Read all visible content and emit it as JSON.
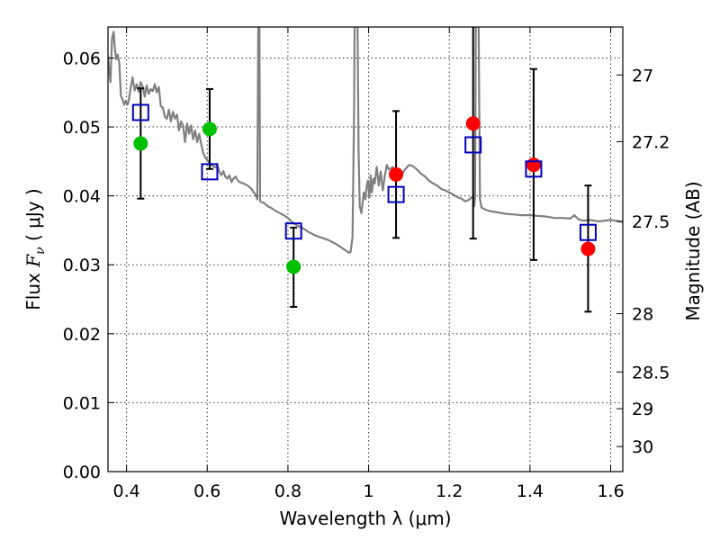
{
  "chart_data": {
    "type": "scatter",
    "title": "",
    "xlabel": "Wavelength  λ (μm)",
    "ylabel_prefix": "Flux  ",
    "ylabel_symbol": "F",
    "ylabel_sub": "ν",
    "ylabel_suffix": "  ( μJy )",
    "ylabel_right": "Magnitude (AB)",
    "xlim": [
      0.354,
      1.63
    ],
    "ylim": [
      0.0,
      0.0645
    ],
    "grid": true,
    "x_ticks": [
      {
        "value": 0.4,
        "label": "0.4"
      },
      {
        "value": 0.6,
        "label": "0.6"
      },
      {
        "value": 0.8,
        "label": "0.8"
      },
      {
        "value": 1.0,
        "label": "1"
      },
      {
        "value": 1.2,
        "label": "1.2"
      },
      {
        "value": 1.4,
        "label": "1.4"
      },
      {
        "value": 1.6,
        "label": "1.6"
      }
    ],
    "y_ticks": [
      {
        "value": 0.0,
        "label": "0.00"
      },
      {
        "value": 0.01,
        "label": "0.01"
      },
      {
        "value": 0.02,
        "label": "0.02"
      },
      {
        "value": 0.03,
        "label": "0.03"
      },
      {
        "value": 0.04,
        "label": "0.04"
      },
      {
        "value": 0.05,
        "label": "0.05"
      },
      {
        "value": 0.06,
        "label": "0.06"
      }
    ],
    "right_ticks": [
      {
        "value": 27,
        "label": "27"
      },
      {
        "value": 27.2,
        "label": "27.2"
      },
      {
        "value": 27.5,
        "label": "27.5"
      },
      {
        "value": 28,
        "label": "28"
      },
      {
        "value": 28.5,
        "label": "28.5"
      },
      {
        "value": 29,
        "label": "29"
      },
      {
        "value": 30,
        "label": "30"
      }
    ],
    "model_spectrum": {
      "color": "#808080",
      "points": [
        [
          0.354,
          0.0604
        ],
        [
          0.357,
          0.0582
        ],
        [
          0.36,
          0.0565
        ],
        [
          0.364,
          0.0628
        ],
        [
          0.368,
          0.0638
        ],
        [
          0.371,
          0.0615
        ],
        [
          0.374,
          0.0598
        ],
        [
          0.378,
          0.0605
        ],
        [
          0.382,
          0.0592
        ],
        [
          0.386,
          0.0545
        ],
        [
          0.39,
          0.054
        ],
        [
          0.394,
          0.0532
        ],
        [
          0.398,
          0.0538
        ],
        [
          0.402,
          0.0532
        ],
        [
          0.405,
          0.0537
        ],
        [
          0.41,
          0.0556
        ],
        [
          0.415,
          0.0572
        ],
        [
          0.42,
          0.0553
        ],
        [
          0.425,
          0.0562
        ],
        [
          0.43,
          0.0551
        ],
        [
          0.435,
          0.0565
        ],
        [
          0.44,
          0.0558
        ],
        [
          0.445,
          0.0544
        ],
        [
          0.45,
          0.056
        ],
        [
          0.455,
          0.0548
        ],
        [
          0.46,
          0.0555
        ],
        [
          0.465,
          0.0552
        ],
        [
          0.47,
          0.0562
        ],
        [
          0.475,
          0.055
        ],
        [
          0.48,
          0.0558
        ],
        [
          0.485,
          0.053
        ],
        [
          0.49,
          0.0528
        ],
        [
          0.495,
          0.0515
        ],
        [
          0.5,
          0.0512
        ],
        [
          0.505,
          0.0525
        ],
        [
          0.51,
          0.0508
        ],
        [
          0.515,
          0.0522
        ],
        [
          0.52,
          0.0512
        ],
        [
          0.525,
          0.0518
        ],
        [
          0.53,
          0.0495
        ],
        [
          0.535,
          0.0508
        ],
        [
          0.54,
          0.0502
        ],
        [
          0.545,
          0.0478
        ],
        [
          0.55,
          0.0505
        ],
        [
          0.555,
          0.049
        ],
        [
          0.56,
          0.0502
        ],
        [
          0.565,
          0.0482
        ],
        [
          0.57,
          0.0495
        ],
        [
          0.575,
          0.0478
        ],
        [
          0.58,
          0.049
        ],
        [
          0.585,
          0.0475
        ],
        [
          0.59,
          0.0462
        ],
        [
          0.595,
          0.0456
        ],
        [
          0.6,
          0.0452
        ],
        [
          0.605,
          0.0448
        ],
        [
          0.61,
          0.0445
        ],
        [
          0.62,
          0.0441
        ],
        [
          0.625,
          0.0444
        ],
        [
          0.63,
          0.0435
        ],
        [
          0.635,
          0.043
        ],
        [
          0.64,
          0.0436
        ],
        [
          0.645,
          0.0428
        ],
        [
          0.65,
          0.0425
        ],
        [
          0.655,
          0.043
        ],
        [
          0.66,
          0.042
        ],
        [
          0.665,
          0.0425
        ],
        [
          0.67,
          0.0428
        ],
        [
          0.675,
          0.0423
        ],
        [
          0.68,
          0.042
        ],
        [
          0.69,
          0.0418
        ],
        [
          0.7,
          0.0415
        ],
        [
          0.71,
          0.041
        ],
        [
          0.715,
          0.0405
        ],
        [
          0.72,
          0.0402
        ],
        [
          0.724,
          0.0395
        ],
        [
          0.727,
          0.07
        ],
        [
          0.729,
          0.07
        ],
        [
          0.731,
          0.0392
        ],
        [
          0.74,
          0.039
        ],
        [
          0.75,
          0.0385
        ],
        [
          0.76,
          0.0382
        ],
        [
          0.77,
          0.0378
        ],
        [
          0.78,
          0.0375
        ],
        [
          0.79,
          0.0372
        ],
        [
          0.8,
          0.0368
        ],
        [
          0.81,
          0.0362
        ],
        [
          0.82,
          0.0358
        ],
        [
          0.83,
          0.0355
        ],
        [
          0.84,
          0.0352
        ],
        [
          0.85,
          0.0348
        ],
        [
          0.86,
          0.0345
        ],
        [
          0.87,
          0.0342
        ],
        [
          0.88,
          0.034
        ],
        [
          0.89,
          0.0338
        ],
        [
          0.9,
          0.0336
        ],
        [
          0.91,
          0.0333
        ],
        [
          0.92,
          0.033
        ],
        [
          0.93,
          0.0326
        ],
        [
          0.94,
          0.0322
        ],
        [
          0.95,
          0.0318
        ],
        [
          0.955,
          0.0318
        ],
        [
          0.96,
          0.034
        ],
        [
          0.964,
          0.052
        ],
        [
          0.966,
          0.07
        ],
        [
          0.972,
          0.07
        ],
        [
          0.975,
          0.0468
        ],
        [
          0.978,
          0.0385
        ],
        [
          0.982,
          0.0375
        ],
        [
          0.985,
          0.039
        ],
        [
          0.988,
          0.0405
        ],
        [
          0.992,
          0.0395
        ],
        [
          0.995,
          0.0412
        ],
        [
          0.998,
          0.0422
        ],
        [
          1.002,
          0.0398
        ],
        [
          1.005,
          0.043
        ],
        [
          1.008,
          0.0405
        ],
        [
          1.012,
          0.0425
        ],
        [
          1.015,
          0.0418
        ],
        [
          1.02,
          0.0442
        ],
        [
          1.025,
          0.0415
        ],
        [
          1.03,
          0.0435
        ],
        [
          1.035,
          0.0408
        ],
        [
          1.04,
          0.0428
        ],
        [
          1.045,
          0.0445
        ],
        [
          1.05,
          0.0438
        ],
        [
          1.06,
          0.0442
        ],
        [
          1.07,
          0.0435
        ],
        [
          1.08,
          0.0428
        ],
        [
          1.09,
          0.0438
        ],
        [
          1.1,
          0.0445
        ],
        [
          1.11,
          0.0443
        ],
        [
          1.12,
          0.0438
        ],
        [
          1.13,
          0.0432
        ],
        [
          1.14,
          0.0428
        ],
        [
          1.15,
          0.0422
        ],
        [
          1.16,
          0.0418
        ],
        [
          1.17,
          0.0415
        ],
        [
          1.18,
          0.041
        ],
        [
          1.19,
          0.0408
        ],
        [
          1.2,
          0.0405
        ],
        [
          1.21,
          0.0402
        ],
        [
          1.22,
          0.0398
        ],
        [
          1.23,
          0.0396
        ],
        [
          1.24,
          0.0392
        ],
        [
          1.25,
          0.0395
        ],
        [
          1.26,
          0.04
        ],
        [
          1.262,
          0.0385
        ],
        [
          1.264,
          0.0398
        ],
        [
          1.266,
          0.07
        ],
        [
          1.272,
          0.07
        ],
        [
          1.276,
          0.0395
        ],
        [
          1.28,
          0.0383
        ],
        [
          1.29,
          0.038
        ],
        [
          1.3,
          0.0378
        ],
        [
          1.32,
          0.0376
        ],
        [
          1.34,
          0.0374
        ],
        [
          1.36,
          0.0373
        ],
        [
          1.38,
          0.0372
        ],
        [
          1.4,
          0.0372
        ],
        [
          1.42,
          0.0371
        ],
        [
          1.44,
          0.037
        ],
        [
          1.46,
          0.0368
        ],
        [
          1.48,
          0.0368
        ],
        [
          1.5,
          0.0367
        ],
        [
          1.51,
          0.0372
        ],
        [
          1.52,
          0.0366
        ],
        [
          1.53,
          0.0364
        ],
        [
          1.55,
          0.0365
        ],
        [
          1.57,
          0.0363
        ],
        [
          1.6,
          0.0365
        ],
        [
          1.63,
          0.0362
        ]
      ]
    },
    "series": [
      {
        "marker": "circle",
        "color": "#00c000",
        "points": [
          {
            "x": 0.435,
            "y": 0.0476
          },
          {
            "x": 0.606,
            "y": 0.0497
          },
          {
            "x": 0.814,
            "y": 0.0297
          }
        ]
      },
      {
        "marker": "circle",
        "color": "#ff0000",
        "points": [
          {
            "x": 1.068,
            "y": 0.0431
          },
          {
            "x": 1.259,
            "y": 0.0505
          },
          {
            "x": 1.409,
            "y": 0.0445
          },
          {
            "x": 1.544,
            "y": 0.0323
          }
        ]
      },
      {
        "marker": "square-open",
        "color": "#0000c0",
        "points": [
          {
            "x": 0.435,
            "y": 0.0521
          },
          {
            "x": 0.606,
            "y": 0.0435
          },
          {
            "x": 0.814,
            "y": 0.0349
          },
          {
            "x": 1.068,
            "y": 0.0402
          },
          {
            "x": 1.259,
            "y": 0.0474
          },
          {
            "x": 1.409,
            "y": 0.0439
          },
          {
            "x": 1.544,
            "y": 0.0347
          }
        ]
      }
    ],
    "error_bars": [
      {
        "x": 0.435,
        "low": 0.0396,
        "high": 0.0556
      },
      {
        "x": 0.606,
        "low": 0.0439,
        "high": 0.0555
      },
      {
        "x": 0.814,
        "low": 0.0239,
        "high": 0.0354
      },
      {
        "x": 1.068,
        "low": 0.0339,
        "high": 0.0523
      },
      {
        "x": 1.259,
        "low": 0.0338,
        "high": 0.07
      },
      {
        "x": 1.409,
        "low": 0.0307,
        "high": 0.0584
      },
      {
        "x": 1.544,
        "low": 0.0232,
        "high": 0.0415
      }
    ]
  }
}
